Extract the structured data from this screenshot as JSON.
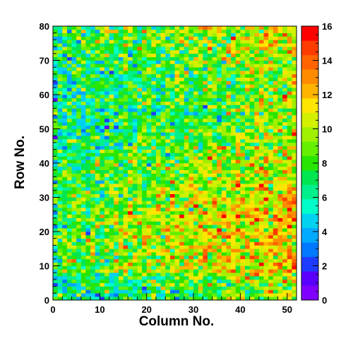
{
  "chart_data": {
    "type": "heatmap",
    "title": "",
    "xlabel": "Column No.",
    "ylabel": "Row No.",
    "xlim": [
      0,
      52
    ],
    "ylim": [
      0,
      80
    ],
    "zlim": [
      0,
      16
    ],
    "n_columns": 52,
    "n_rows": 80,
    "x_ticks": [
      "0",
      "10",
      "20",
      "30",
      "40",
      "50"
    ],
    "y_ticks": [
      "0",
      "10",
      "20",
      "30",
      "40",
      "50",
      "60",
      "70",
      "80"
    ],
    "z_ticks": [
      "0",
      "2",
      "4",
      "6",
      "8",
      "10",
      "12",
      "14",
      "16"
    ],
    "colorbar": "right",
    "grid": false,
    "palette": [
      "#8000ff",
      "#5a00ff",
      "#1e3cff",
      "#0078ff",
      "#00aaff",
      "#00d2f0",
      "#00ffc8",
      "#00f08c",
      "#00e650",
      "#28e600",
      "#64f000",
      "#a0f000",
      "#d2f000",
      "#ffe600",
      "#ffb400",
      "#ff8c00",
      "#ff6400",
      "#ff3c00",
      "#ff0000"
    ],
    "description_of_values": "Per-cell counts ~4-16; low (blue/cyan) at left and near the bottom, higher (orange/red) toward right columns 30-52."
  }
}
